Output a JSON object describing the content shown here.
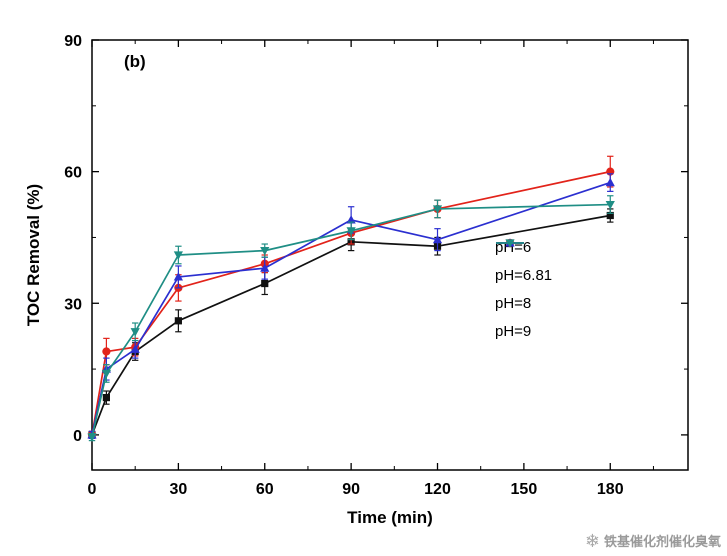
{
  "page": {
    "background": "#ffffff"
  },
  "watermark": {
    "icon": "❄",
    "text": "铁基催化剂催化臭氧"
  },
  "chart_data": {
    "type": "line",
    "panel_label": "(b)",
    "xlabel": "Time (min)",
    "ylabel": "TOC Removal (%)",
    "xlim": [
      0,
      207
    ],
    "ylim": [
      -8,
      90
    ],
    "xticks": [
      0,
      30,
      60,
      90,
      120,
      150,
      180
    ],
    "yticks": [
      0,
      30,
      60,
      90
    ],
    "xminor": [
      15,
      45,
      75,
      105,
      135,
      165,
      195
    ],
    "yminor": [
      15,
      45,
      75
    ],
    "x": [
      0,
      5,
      15,
      30,
      60,
      90,
      120,
      180
    ],
    "series": [
      {
        "name": "pH=6",
        "color": "#111111",
        "marker": "square",
        "values": [
          0,
          8.5,
          19,
          26,
          34.5,
          44,
          43,
          50
        ],
        "errors": [
          0.8,
          1.5,
          2,
          2.5,
          2.5,
          2,
          2,
          1.5
        ]
      },
      {
        "name": "pH=6.81",
        "color": "#e2231a",
        "marker": "circle",
        "values": [
          0,
          19,
          20,
          33.5,
          39,
          46,
          51.5,
          60
        ],
        "errors": [
          0.8,
          3,
          2,
          3,
          2,
          2.5,
          2,
          3.5
        ]
      },
      {
        "name": "pH=8",
        "color": "#2b2fd0",
        "marker": "triangle-up",
        "values": [
          0,
          15,
          19.5,
          36,
          38,
          49,
          44.5,
          57.5
        ],
        "errors": [
          0.8,
          2.5,
          2,
          2.5,
          2.5,
          3,
          2.5,
          2
        ]
      },
      {
        "name": "pH=9",
        "color": "#1f8e85",
        "marker": "triangle-down",
        "values": [
          -0.5,
          14,
          23.5,
          41,
          42,
          46.5,
          51.5,
          52.5
        ],
        "errors": [
          0.8,
          2,
          2,
          2,
          1.5,
          2,
          2,
          2
        ]
      }
    ],
    "legend_position": "right-center"
  }
}
